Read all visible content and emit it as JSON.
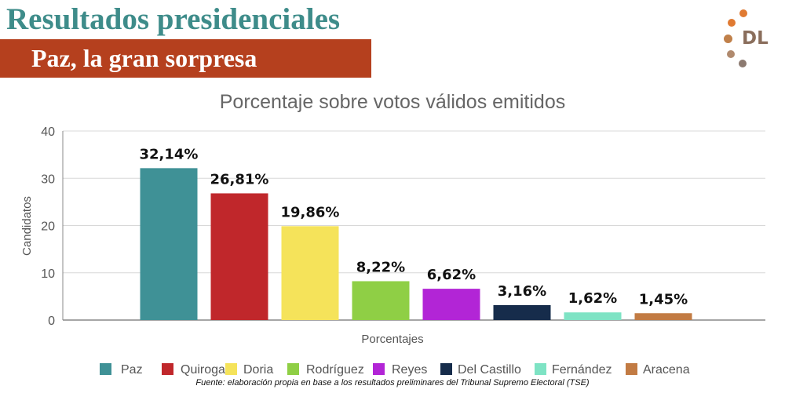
{
  "header": {
    "title": "Resultados presidenciales",
    "subtitle": "Paz, la gran sorpresa",
    "logo_text": "DL"
  },
  "colors": {
    "title": "#3e8c8a",
    "subtitle_band": "#b5401e",
    "logo_dots": [
      "#e07a32",
      "#e07a32",
      "#c0804a",
      "#b08a6e",
      "#8c7a70",
      "#8c7a70"
    ]
  },
  "chart_data": {
    "type": "bar",
    "title": "Porcentaje sobre votos válidos emitidos",
    "xlabel": "Porcentajes",
    "ylabel": "Candidatos",
    "ylim": [
      0,
      40
    ],
    "yticks": [
      "0",
      "10",
      "20",
      "30",
      "40"
    ],
    "grid": true,
    "legend_position": "bottom",
    "series": [
      {
        "name": "Paz",
        "value": 32.14,
        "label": "32,14%",
        "color": "#3f9196"
      },
      {
        "name": "Quiroga",
        "value": 26.81,
        "label": "26,81%",
        "color": "#c0272b"
      },
      {
        "name": "Doria",
        "value": 19.86,
        "label": "19,86%",
        "color": "#f5e35a"
      },
      {
        "name": "Rodríguez",
        "value": 8.22,
        "label": "8,22%",
        "color": "#8fcf45"
      },
      {
        "name": "Reyes",
        "value": 6.62,
        "label": "6,62%",
        "color": "#b225d6"
      },
      {
        "name": "Del Castillo",
        "value": 3.16,
        "label": "3,16%",
        "color": "#162c4b"
      },
      {
        "name": "Fernández",
        "value": 1.62,
        "label": "1,62%",
        "color": "#7ee3c4"
      },
      {
        "name": "Aracena",
        "value": 1.45,
        "label": "1,45%",
        "color": "#c27b43"
      }
    ]
  },
  "footer": {
    "source": "Fuente: elaboración propia en base a los resultados preliminares del Tribunal Supremo Electoral (TSE)"
  }
}
